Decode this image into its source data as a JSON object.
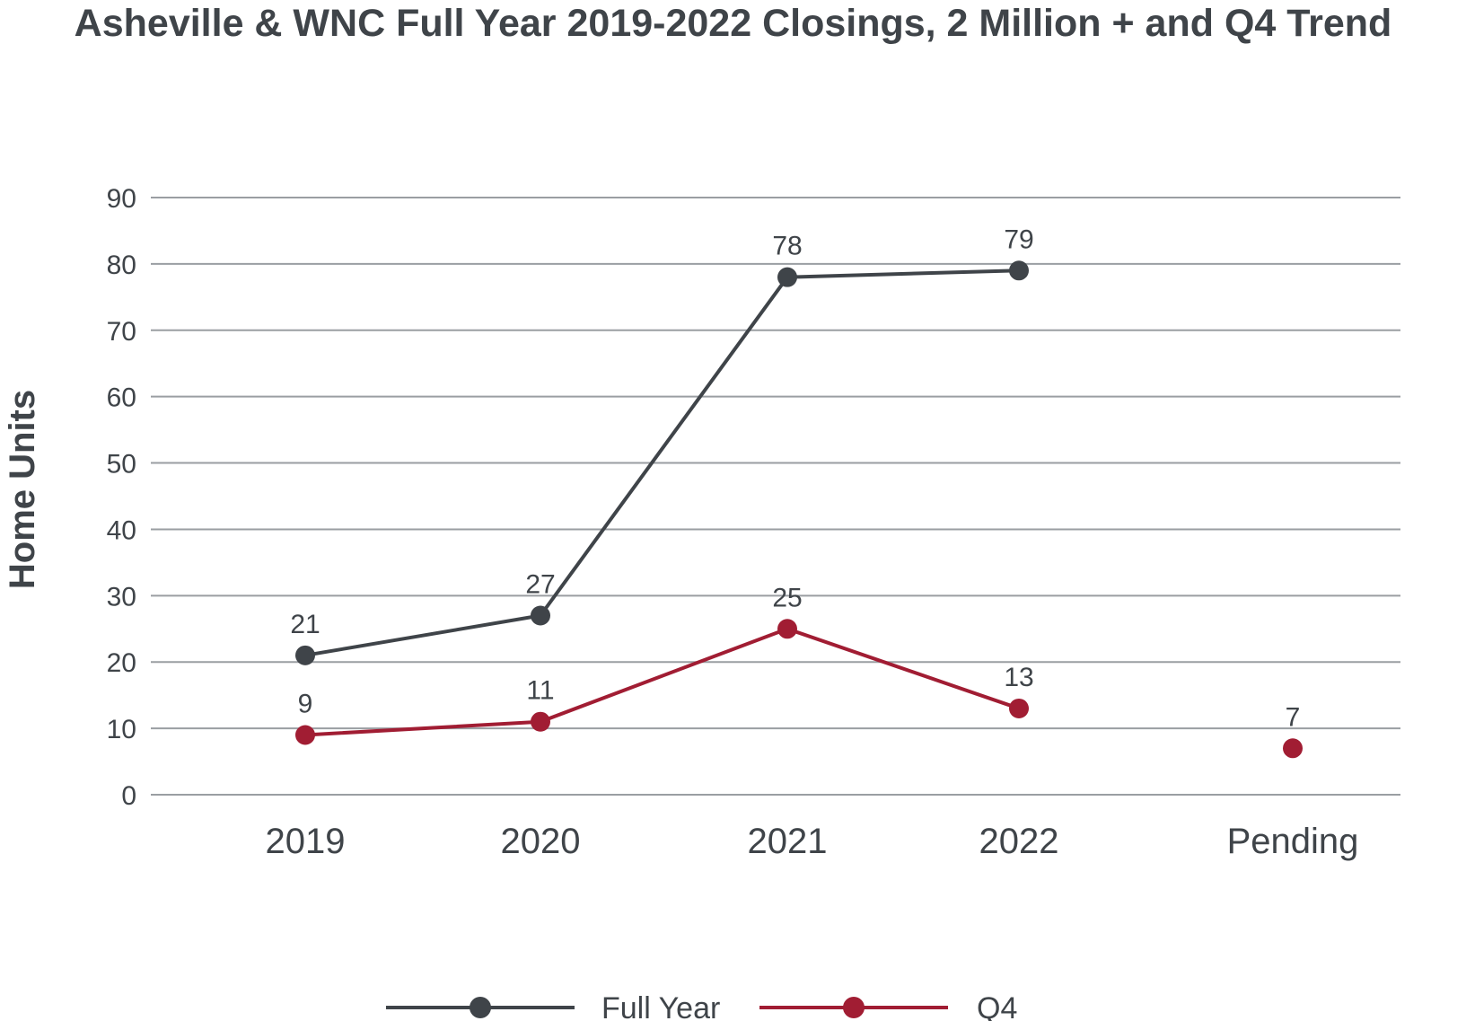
{
  "chart_data": {
    "type": "line",
    "title": "Asheville & WNC Full Year 2019-2022 Closings, 2 Million + and Q4 Trend",
    "xlabel": "",
    "ylabel": "Home Units",
    "categories": [
      "2019",
      "2020",
      "2021",
      "2022",
      "Pending"
    ],
    "yticks": [
      0,
      10,
      20,
      30,
      40,
      50,
      60,
      70,
      80,
      90
    ],
    "ylim": [
      0,
      90
    ],
    "grid": true,
    "legend_position": "bottom",
    "series": [
      {
        "name": "Full Year",
        "color": "#3f4449",
        "values": [
          21,
          27,
          78,
          79,
          null
        ],
        "labels": [
          "21",
          "27",
          "78",
          "79",
          null
        ]
      },
      {
        "name": "Q4",
        "color": "#a11d33",
        "values": [
          9,
          11,
          25,
          13,
          7
        ],
        "labels": [
          "9",
          "11",
          "25",
          "13",
          "7"
        ],
        "connected": [
          true,
          true,
          true,
          true,
          false
        ]
      }
    ]
  }
}
